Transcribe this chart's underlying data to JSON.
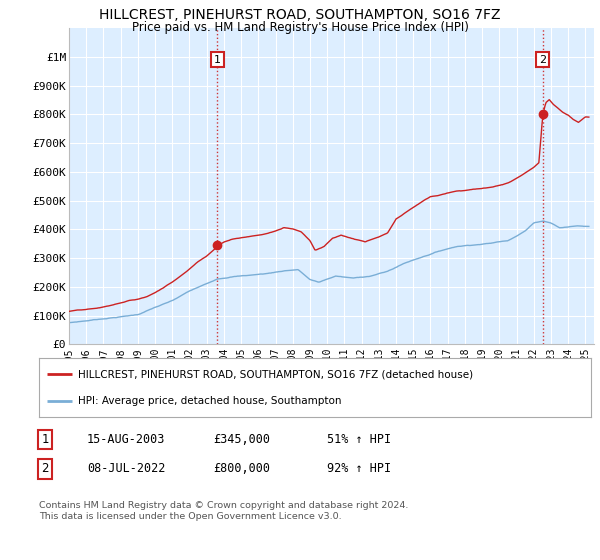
{
  "title": "HILLCREST, PINEHURST ROAD, SOUTHAMPTON, SO16 7FZ",
  "subtitle": "Price paid vs. HM Land Registry's House Price Index (HPI)",
  "legend_line1": "HILLCREST, PINEHURST ROAD, SOUTHAMPTON, SO16 7FZ (detached house)",
  "legend_line2": "HPI: Average price, detached house, Southampton",
  "annotation1": {
    "label": "1",
    "date_str": "15-AUG-2003",
    "price_str": "£345,000",
    "pct_str": "51% ↑ HPI",
    "year": 2003.62,
    "price": 345000
  },
  "annotation2": {
    "label": "2",
    "date_str": "08-JUL-2022",
    "price_str": "£800,000",
    "pct_str": "92% ↑ HPI",
    "year": 2022.52,
    "price": 800000
  },
  "hpi_color": "#7aaed6",
  "sale_color": "#cc2222",
  "background_color": "#ddeeff",
  "plot_bg": "#ddeeff",
  "grid_color": "#ffffff",
  "ylim": [
    0,
    1100000
  ],
  "xlim_start": 1995.0,
  "xlim_end": 2025.5,
  "footer": "Contains HM Land Registry data © Crown copyright and database right 2024.\nThis data is licensed under the Open Government Licence v3.0.",
  "ytick_labels": [
    "£0",
    "£100K",
    "£200K",
    "£300K",
    "£400K",
    "£500K",
    "£600K",
    "£700K",
    "£800K",
    "£900K",
    "£1M"
  ],
  "ytick_values": [
    0,
    100000,
    200000,
    300000,
    400000,
    500000,
    600000,
    700000,
    800000,
    900000,
    1000000
  ]
}
